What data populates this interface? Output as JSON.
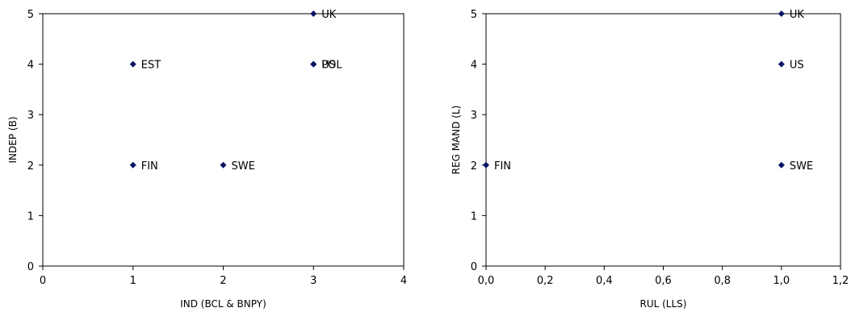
{
  "chart_data": [
    {
      "type": "scatter",
      "title": "",
      "xlabel": "IND (BCL & BNPY)",
      "ylabel": "INDEP (B)",
      "xlim": [
        0,
        4
      ],
      "ylim": [
        0,
        5
      ],
      "x_ticks": [
        0,
        1,
        2,
        3,
        4
      ],
      "y_ticks": [
        0,
        1,
        2,
        3,
        4,
        5
      ],
      "x_tick_labels": [
        "0",
        "1",
        "2",
        "3",
        "4"
      ],
      "y_tick_labels": [
        "0",
        "1",
        "2",
        "3",
        "4",
        "5"
      ],
      "grid": false,
      "legend": "none",
      "marker_color": "#0a1464",
      "points": [
        {
          "label": "UK",
          "x": 3,
          "y": 5
        },
        {
          "label": "EST",
          "x": 1,
          "y": 4
        },
        {
          "label": "US",
          "x": 3,
          "y": 4
        },
        {
          "label": "POL",
          "x": 3,
          "y": 4
        },
        {
          "label": "FIN",
          "x": 1,
          "y": 2
        },
        {
          "label": "SWE",
          "x": 2,
          "y": 2
        }
      ]
    },
    {
      "type": "scatter",
      "title": "",
      "xlabel": "RUL (LLS)",
      "ylabel": "REG MAND (L)",
      "xlim": [
        0,
        1.2
      ],
      "ylim": [
        0,
        5
      ],
      "x_ticks": [
        0,
        0.2,
        0.4,
        0.6,
        0.8,
        1.0,
        1.2
      ],
      "y_ticks": [
        0,
        1,
        2,
        3,
        4,
        5
      ],
      "x_tick_labels": [
        "0,0",
        "0,2",
        "0,4",
        "0,6",
        "0,8",
        "1,0",
        "1,2"
      ],
      "y_tick_labels": [
        "0",
        "1",
        "2",
        "3",
        "4",
        "5"
      ],
      "grid": false,
      "legend": "none",
      "marker_color": "#0a1464",
      "points": [
        {
          "label": "UK",
          "x": 1.0,
          "y": 5
        },
        {
          "label": "US",
          "x": 1.0,
          "y": 4
        },
        {
          "label": "FIN",
          "x": 0.0,
          "y": 2
        },
        {
          "label": "SWE",
          "x": 1.0,
          "y": 2
        }
      ]
    }
  ]
}
